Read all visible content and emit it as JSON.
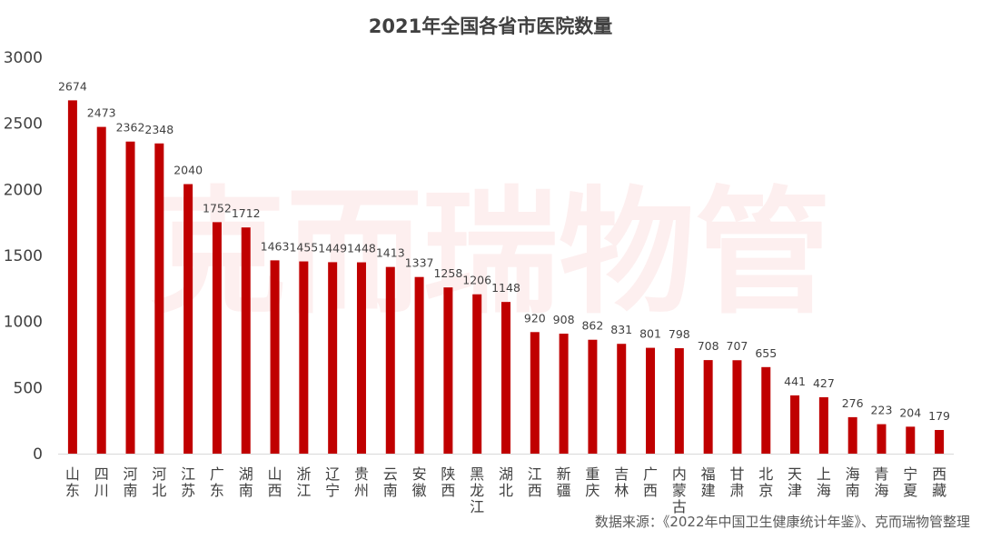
{
  "chart_data": {
    "type": "bar",
    "title": "2021年全国各省市医院数量",
    "xlabel": "",
    "ylabel": "",
    "ylim": [
      0,
      3000
    ],
    "yticks": [
      0,
      500,
      1000,
      1500,
      2000,
      2500,
      3000
    ],
    "grid": false,
    "legend": "none",
    "bar_color": "#c00000",
    "categories": [
      "山东",
      "四川",
      "河南",
      "河北",
      "江苏",
      "广东",
      "湖南",
      "山西",
      "浙江",
      "辽宁",
      "贵州",
      "云南",
      "安徽",
      "陕西",
      "黑龙江",
      "湖北",
      "江西",
      "新疆",
      "重庆",
      "吉林",
      "广西",
      "内蒙古",
      "福建",
      "甘肃",
      "北京",
      "天津",
      "上海",
      "海南",
      "青海",
      "宁夏",
      "西藏"
    ],
    "values": [
      2674,
      2473,
      2362,
      2348,
      2040,
      1752,
      1712,
      1463,
      1455,
      1449,
      1448,
      1413,
      1337,
      1258,
      1206,
      1148,
      920,
      908,
      862,
      831,
      801,
      798,
      708,
      707,
      655,
      441,
      427,
      276,
      223,
      204,
      179
    ]
  },
  "source": "数据来源：《2022年中国卫生健康统计年鉴》、克而瑞物管整理",
  "watermark": "克而瑞物管"
}
